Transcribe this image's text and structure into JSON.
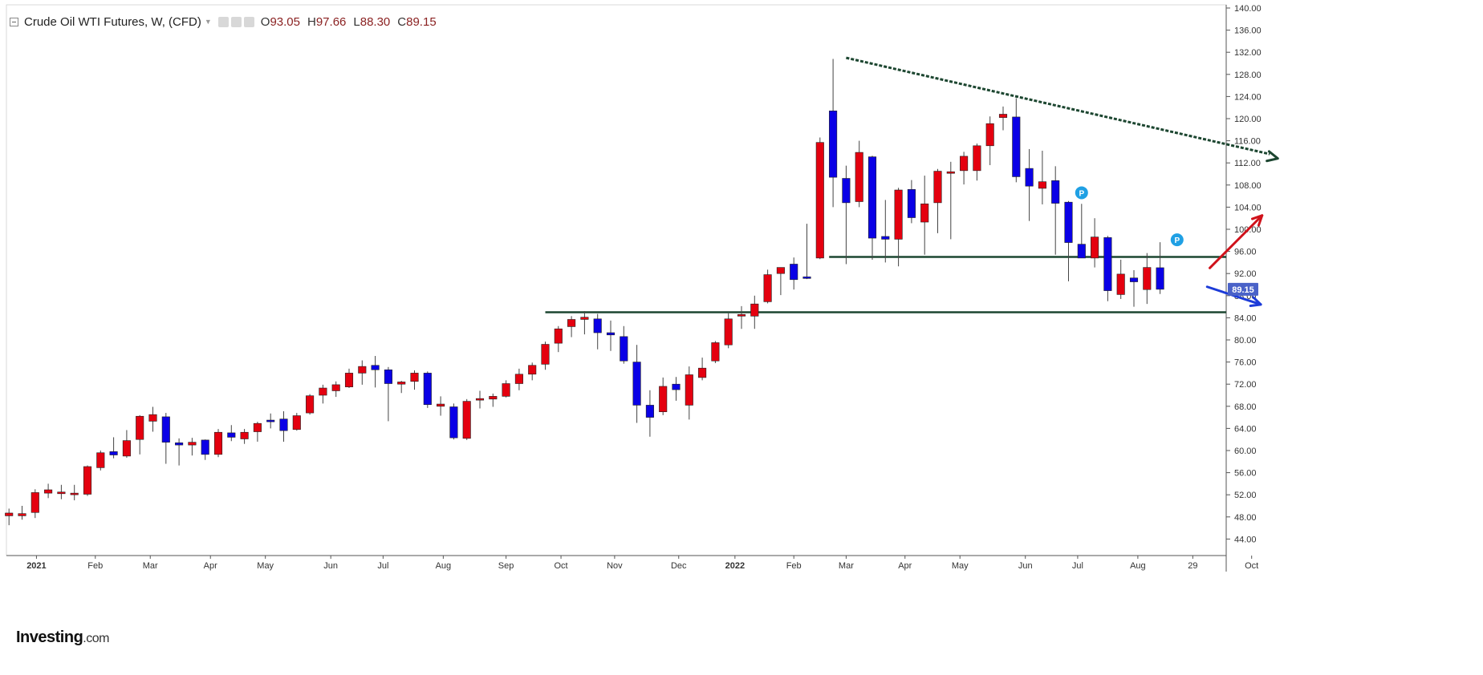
{
  "header": {
    "title": "Crude Oil WTI Futures, W, (CFD)",
    "open_label": "O",
    "open": "93.05",
    "high_label": "H",
    "high": "97.66",
    "low_label": "L",
    "low": "88.30",
    "close_label": "C",
    "close": "89.15"
  },
  "logo": {
    "main": "Investing",
    "suffix": ".com"
  },
  "colors": {
    "up": "#e4000f",
    "down": "#0a00e6",
    "wick": "#444444",
    "price_tag": "#4a62c8",
    "downtrend_line": "#1c4630",
    "support_line": "#1c4630",
    "arrow_up": "#d0121b",
    "arrow_down": "#1c3bd8",
    "pivot_marker": "#1fa0e4"
  },
  "chart_data": {
    "type": "candlestick",
    "title": "Crude Oil WTI Futures, W, (CFD)",
    "timeframe": "Weekly",
    "y_axis": {
      "side": "right",
      "ylim": [
        41,
        141
      ],
      "ticks": [
        "44.00",
        "48.00",
        "52.00",
        "56.00",
        "60.00",
        "64.00",
        "68.00",
        "72.00",
        "76.00",
        "80.00",
        "84.00",
        "88.00",
        "92.00",
        "96.00",
        "100.00",
        "104.00",
        "108.00",
        "112.00",
        "116.00",
        "120.00",
        "124.00",
        "128.00",
        "132.00",
        "136.00",
        "140.00"
      ]
    },
    "x_axis": {
      "labels": [
        {
          "label": "2021",
          "i": 2.1,
          "bold": true
        },
        {
          "label": "Feb",
          "i": 6.6
        },
        {
          "label": "Mar",
          "i": 10.8
        },
        {
          "label": "Apr",
          "i": 15.4
        },
        {
          "label": "May",
          "i": 19.6
        },
        {
          "label": "Jun",
          "i": 24.6
        },
        {
          "label": "Jul",
          "i": 28.6
        },
        {
          "label": "Aug",
          "i": 33.2
        },
        {
          "label": "Sep",
          "i": 38.0
        },
        {
          "label": "Oct",
          "i": 42.2
        },
        {
          "label": "Nov",
          "i": 46.3
        },
        {
          "label": "Dec",
          "i": 51.2
        },
        {
          "label": "2022",
          "i": 55.5,
          "bold": true
        },
        {
          "label": "Feb",
          "i": 60.0
        },
        {
          "label": "Mar",
          "i": 64.0
        },
        {
          "label": "Apr",
          "i": 68.5
        },
        {
          "label": "May",
          "i": 72.7
        },
        {
          "label": "Jun",
          "i": 77.7
        },
        {
          "label": "Jul",
          "i": 81.7
        },
        {
          "label": "Aug",
          "i": 86.3
        },
        {
          "label": "29",
          "i": 90.5
        },
        {
          "label": "Oct",
          "i": 95.0
        }
      ]
    },
    "candles": [
      {
        "o": 48.2,
        "h": 49.5,
        "l": 46.5,
        "c": 48.7
      },
      {
        "o": 48.2,
        "h": 50.0,
        "l": 47.5,
        "c": 48.6
      },
      {
        "o": 48.8,
        "h": 53.0,
        "l": 47.8,
        "c": 52.4
      },
      {
        "o": 52.3,
        "h": 54.0,
        "l": 51.4,
        "c": 52.9
      },
      {
        "o": 52.2,
        "h": 53.8,
        "l": 51.2,
        "c": 52.5
      },
      {
        "o": 52.1,
        "h": 53.8,
        "l": 51.0,
        "c": 52.3
      },
      {
        "o": 52.1,
        "h": 57.3,
        "l": 51.8,
        "c": 57.1
      },
      {
        "o": 56.9,
        "h": 60.0,
        "l": 56.4,
        "c": 59.6
      },
      {
        "o": 59.8,
        "h": 62.4,
        "l": 58.6,
        "c": 59.2
      },
      {
        "o": 59.0,
        "h": 63.7,
        "l": 58.7,
        "c": 61.8
      },
      {
        "o": 62.0,
        "h": 66.4,
        "l": 59.3,
        "c": 66.2
      },
      {
        "o": 65.3,
        "h": 67.9,
        "l": 63.4,
        "c": 66.5
      },
      {
        "o": 66.1,
        "h": 66.8,
        "l": 57.6,
        "c": 61.5
      },
      {
        "o": 61.4,
        "h": 62.2,
        "l": 57.3,
        "c": 61.0
      },
      {
        "o": 61.0,
        "h": 62.3,
        "l": 59.1,
        "c": 61.5
      },
      {
        "o": 61.9,
        "h": 62.0,
        "l": 58.3,
        "c": 59.3
      },
      {
        "o": 59.3,
        "h": 63.9,
        "l": 58.8,
        "c": 63.3
      },
      {
        "o": 63.2,
        "h": 64.6,
        "l": 61.7,
        "c": 62.4
      },
      {
        "o": 62.1,
        "h": 63.9,
        "l": 61.2,
        "c": 63.3
      },
      {
        "o": 63.4,
        "h": 65.2,
        "l": 61.6,
        "c": 64.9
      },
      {
        "o": 65.5,
        "h": 66.7,
        "l": 64.0,
        "c": 65.2
      },
      {
        "o": 65.7,
        "h": 67.1,
        "l": 61.6,
        "c": 63.6
      },
      {
        "o": 63.8,
        "h": 66.8,
        "l": 63.6,
        "c": 66.3
      },
      {
        "o": 66.8,
        "h": 70.2,
        "l": 66.5,
        "c": 69.9
      },
      {
        "o": 70.0,
        "h": 71.9,
        "l": 68.5,
        "c": 71.3
      },
      {
        "o": 70.8,
        "h": 72.5,
        "l": 69.7,
        "c": 71.9
      },
      {
        "o": 71.5,
        "h": 74.8,
        "l": 71.3,
        "c": 74.0
      },
      {
        "o": 74.0,
        "h": 76.3,
        "l": 71.9,
        "c": 75.2
      },
      {
        "o": 75.4,
        "h": 77.1,
        "l": 71.4,
        "c": 74.6
      },
      {
        "o": 74.6,
        "h": 75.1,
        "l": 65.3,
        "c": 72.1
      },
      {
        "o": 72.0,
        "h": 72.6,
        "l": 70.4,
        "c": 72.4
      },
      {
        "o": 72.5,
        "h": 74.5,
        "l": 71.0,
        "c": 74.0
      },
      {
        "o": 74.0,
        "h": 74.3,
        "l": 67.7,
        "c": 68.3
      },
      {
        "o": 68.0,
        "h": 69.8,
        "l": 66.3,
        "c": 68.4
      },
      {
        "o": 67.9,
        "h": 68.5,
        "l": 62.0,
        "c": 62.3
      },
      {
        "o": 62.2,
        "h": 69.3,
        "l": 61.9,
        "c": 68.9
      },
      {
        "o": 69.3,
        "h": 70.8,
        "l": 67.6,
        "c": 69.4
      },
      {
        "o": 69.3,
        "h": 70.3,
        "l": 67.9,
        "c": 69.8
      },
      {
        "o": 69.8,
        "h": 72.7,
        "l": 69.6,
        "c": 72.1
      },
      {
        "o": 72.1,
        "h": 74.8,
        "l": 70.9,
        "c": 73.8
      },
      {
        "o": 73.8,
        "h": 75.9,
        "l": 72.7,
        "c": 75.4
      },
      {
        "o": 75.6,
        "h": 79.7,
        "l": 74.6,
        "c": 79.2
      },
      {
        "o": 79.4,
        "h": 82.5,
        "l": 77.8,
        "c": 82.0
      },
      {
        "o": 82.4,
        "h": 84.3,
        "l": 80.5,
        "c": 83.7
      },
      {
        "o": 83.7,
        "h": 85.2,
        "l": 81.0,
        "c": 84.1
      },
      {
        "o": 83.8,
        "h": 84.7,
        "l": 78.3,
        "c": 81.3
      },
      {
        "o": 81.3,
        "h": 83.5,
        "l": 78.0,
        "c": 80.9
      },
      {
        "o": 80.6,
        "h": 82.5,
        "l": 75.7,
        "c": 76.2
      },
      {
        "o": 76.0,
        "h": 79.1,
        "l": 65.0,
        "c": 68.2
      },
      {
        "o": 68.2,
        "h": 70.9,
        "l": 62.5,
        "c": 66.0
      },
      {
        "o": 67.0,
        "h": 73.2,
        "l": 66.4,
        "c": 71.6
      },
      {
        "o": 72.0,
        "h": 73.3,
        "l": 69.0,
        "c": 71.0
      },
      {
        "o": 68.2,
        "h": 75.2,
        "l": 65.6,
        "c": 73.7
      },
      {
        "o": 73.2,
        "h": 76.8,
        "l": 72.7,
        "c": 74.9
      },
      {
        "o": 76.2,
        "h": 79.8,
        "l": 75.8,
        "c": 79.5
      },
      {
        "o": 79.1,
        "h": 84.8,
        "l": 78.5,
        "c": 83.8
      },
      {
        "o": 84.3,
        "h": 86.1,
        "l": 82.0,
        "c": 84.6
      },
      {
        "o": 84.3,
        "h": 88.0,
        "l": 82.0,
        "c": 86.5
      },
      {
        "o": 86.9,
        "h": 92.7,
        "l": 86.6,
        "c": 91.8
      },
      {
        "o": 92.0,
        "h": 93.1,
        "l": 88.1,
        "c": 93.1
      },
      {
        "o": 93.7,
        "h": 94.9,
        "l": 89.1,
        "c": 90.9
      },
      {
        "o": 91.4,
        "h": 101.0,
        "l": 91.0,
        "c": 91.2
      },
      {
        "o": 94.8,
        "h": 116.6,
        "l": 94.6,
        "c": 115.7
      },
      {
        "o": 121.4,
        "h": 130.8,
        "l": 104.0,
        "c": 109.4
      },
      {
        "o": 109.2,
        "h": 111.5,
        "l": 93.7,
        "c": 104.8
      },
      {
        "o": 105.0,
        "h": 116.0,
        "l": 104.0,
        "c": 113.9
      },
      {
        "o": 113.1,
        "h": 113.3,
        "l": 94.5,
        "c": 98.4
      },
      {
        "o": 98.7,
        "h": 105.3,
        "l": 94.0,
        "c": 98.2
      },
      {
        "o": 98.2,
        "h": 107.5,
        "l": 93.3,
        "c": 107.1
      },
      {
        "o": 107.2,
        "h": 108.9,
        "l": 101.1,
        "c": 102.1
      },
      {
        "o": 101.3,
        "h": 109.7,
        "l": 95.4,
        "c": 104.6
      },
      {
        "o": 104.8,
        "h": 110.9,
        "l": 99.3,
        "c": 110.5
      },
      {
        "o": 110.4,
        "h": 112.2,
        "l": 98.2,
        "c": 110.4
      },
      {
        "o": 110.6,
        "h": 114.0,
        "l": 108.1,
        "c": 113.2
      },
      {
        "o": 110.6,
        "h": 115.5,
        "l": 108.8,
        "c": 115.1
      },
      {
        "o": 115.1,
        "h": 120.4,
        "l": 111.6,
        "c": 119.1
      },
      {
        "o": 120.2,
        "h": 122.2,
        "l": 117.9,
        "c": 120.8
      },
      {
        "o": 120.3,
        "h": 123.7,
        "l": 108.5,
        "c": 109.5
      },
      {
        "o": 111.0,
        "h": 114.5,
        "l": 101.5,
        "c": 107.8
      },
      {
        "o": 107.4,
        "h": 114.2,
        "l": 104.5,
        "c": 108.6
      },
      {
        "o": 108.8,
        "h": 111.4,
        "l": 95.4,
        "c": 104.7
      },
      {
        "o": 104.9,
        "h": 105.1,
        "l": 90.6,
        "c": 97.6
      },
      {
        "o": 97.3,
        "h": 104.6,
        "l": 94.8,
        "c": 94.8
      },
      {
        "o": 94.8,
        "h": 102.0,
        "l": 93.1,
        "c": 98.6
      },
      {
        "o": 98.5,
        "h": 98.8,
        "l": 87.0,
        "c": 88.9
      },
      {
        "o": 88.2,
        "h": 94.5,
        "l": 87.4,
        "c": 91.9
      },
      {
        "o": 91.2,
        "h": 92.6,
        "l": 86.0,
        "c": 90.5
      },
      {
        "o": 89.1,
        "h": 95.7,
        "l": 86.5,
        "c": 93.1
      },
      {
        "o": 93.05,
        "h": 97.66,
        "l": 88.3,
        "c": 89.15
      }
    ],
    "last_price": "89.15",
    "annotations": [
      {
        "type": "trendline",
        "name": "descending-resistance",
        "from": {
          "i": 64.0,
          "y": 131.0
        },
        "to": {
          "i": 97.0,
          "y": 112.8
        },
        "style": "dotted",
        "arrow": true
      },
      {
        "type": "hline",
        "name": "support-95",
        "y": 95.0,
        "from_i": 62.7
      },
      {
        "type": "hline",
        "name": "support-85",
        "y": 85.0,
        "from_i": 41.0
      },
      {
        "type": "arrow",
        "name": "bullish-arrow",
        "from": {
          "i": 91.8,
          "y": 93.0
        },
        "to": {
          "i": 95.8,
          "y": 102.5
        }
      },
      {
        "type": "arrow",
        "name": "bearish-arrow",
        "from": {
          "i": 91.6,
          "y": 89.6
        },
        "to": {
          "i": 95.7,
          "y": 86.4
        }
      },
      {
        "type": "marker",
        "name": "pivot-marker",
        "label": "P",
        "i": 82.0,
        "y": 106.6
      },
      {
        "type": "marker",
        "name": "pivot-marker",
        "label": "P",
        "i": 89.3,
        "y": 98.1
      }
    ]
  }
}
